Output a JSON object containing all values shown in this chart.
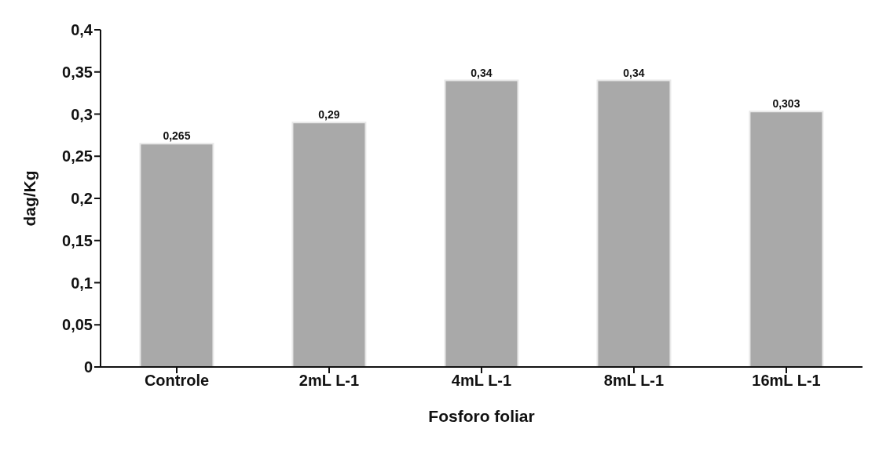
{
  "chart_data": {
    "type": "bar",
    "xlabel": "Fosforo foliar",
    "ylabel": "dag/Kg",
    "categories": [
      "Controle",
      "2mL L-1",
      "4mL L-1",
      "8mL L-1",
      "16mL L-1"
    ],
    "values": [
      0.265,
      0.29,
      0.34,
      0.34,
      0.303
    ],
    "value_labels": [
      "0,265",
      "0,29",
      "0,34",
      "0,34",
      "0,303"
    ],
    "color": "#a9a9a9",
    "ylim": [
      0,
      0.4
    ],
    "yticks": [
      {
        "value": 0,
        "label": "0"
      },
      {
        "value": 0.05,
        "label": "0,05"
      },
      {
        "value": 0.1,
        "label": "0,1"
      },
      {
        "value": 0.15,
        "label": "0,15"
      },
      {
        "value": 0.2,
        "label": "0,2"
      },
      {
        "value": 0.25,
        "label": "0,25"
      },
      {
        "value": 0.3,
        "label": "0,3"
      },
      {
        "value": 0.35,
        "label": "0,35"
      },
      {
        "value": 0.4,
        "label": "0,4"
      }
    ],
    "grid": false,
    "legend": false
  }
}
